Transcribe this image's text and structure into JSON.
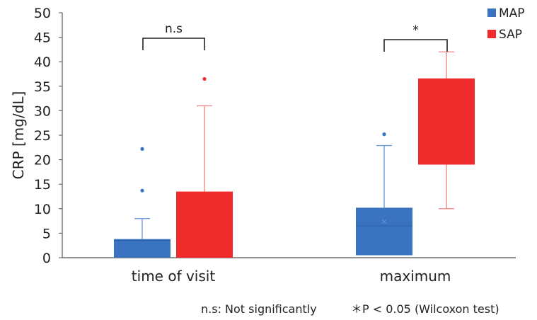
{
  "chart_data": {
    "type": "box",
    "ylabel": "CRP [mg/dL]",
    "ylim": [
      0,
      50
    ],
    "yticks": [
      0,
      5,
      10,
      15,
      20,
      25,
      30,
      35,
      40,
      45,
      50
    ],
    "grid": false,
    "legend_position": "top-right",
    "categories": [
      "time of visit",
      "maximum"
    ],
    "series": [
      {
        "name": "MAP",
        "color": "#3a74c0",
        "boxes": [
          {
            "category": "time of visit",
            "q1": 0,
            "median": 3.5,
            "q3": 3.8,
            "whisker_low": 0,
            "whisker_high": 8,
            "mean": null,
            "outliers": [
              13.7,
              22.2
            ]
          },
          {
            "category": "maximum",
            "q1": 0.5,
            "median": 6.5,
            "q3": 10.2,
            "whisker_low": 0.5,
            "whisker_high": 22.9,
            "mean": 7.5,
            "outliers": [
              25.2
            ]
          }
        ]
      },
      {
        "name": "SAP",
        "color": "#ee2a2a",
        "boxes": [
          {
            "category": "time of visit",
            "q1": 0,
            "median": 0,
            "q3": 13.5,
            "whisker_low": 0,
            "whisker_high": 31,
            "mean": null,
            "outliers": [
              36.5
            ]
          },
          {
            "category": "maximum",
            "q1": 19,
            "median": 19,
            "q3": 36.6,
            "whisker_low": 10,
            "whisker_high": 42,
            "mean": null,
            "outliers": []
          }
        ]
      }
    ],
    "annotations": [
      {
        "category": "time of visit",
        "label": "n.s"
      },
      {
        "category": "maximum",
        "label": "*"
      }
    ],
    "footnotes": [
      "n.s: Not significantly",
      "＊P < 0.05 (Wilcoxon test)"
    ]
  }
}
